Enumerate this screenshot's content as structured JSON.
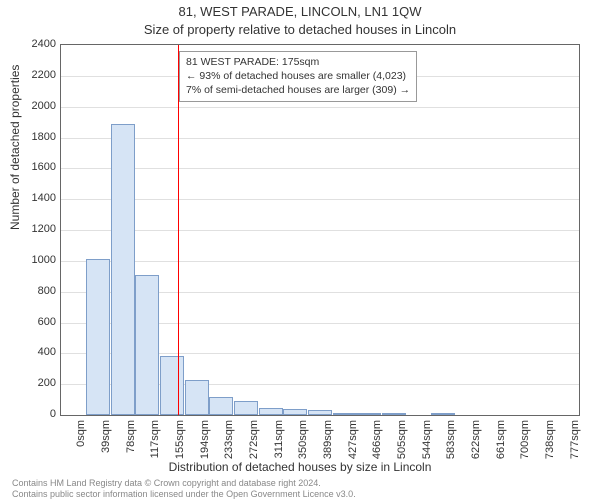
{
  "title_main": "81, WEST PARADE, LINCOLN, LN1 1QW",
  "title_sub": "Size of property relative to detached houses in Lincoln",
  "chart": {
    "type": "histogram",
    "y_axis_label": "Number of detached properties",
    "x_axis_label": "Distribution of detached houses by size in Lincoln",
    "ylim": [
      0,
      2400
    ],
    "ytick_step": 200,
    "x_categories": [
      "0sqm",
      "39sqm",
      "78sqm",
      "117sqm",
      "155sqm",
      "194sqm",
      "233sqm",
      "272sqm",
      "311sqm",
      "350sqm",
      "389sqm",
      "427sqm",
      "466sqm",
      "505sqm",
      "544sqm",
      "583sqm",
      "622sqm",
      "661sqm",
      "700sqm",
      "738sqm",
      "777sqm"
    ],
    "values": [
      0,
      1010,
      1890,
      905,
      380,
      225,
      120,
      92,
      48,
      40,
      32,
      16,
      8,
      7,
      0,
      5,
      0,
      0,
      0,
      0,
      0
    ],
    "bar_fill": "#d6e4f5",
    "bar_stroke": "#7e9ec9",
    "background_color": "#ffffff",
    "grid_color": "#e0e0e0",
    "axis_color": "#666666",
    "reference_line": {
      "x_sqm": 175,
      "color": "#ff0000"
    },
    "annotation": {
      "line1": "81 WEST PARADE: 175sqm",
      "line2": "← 93% of detached houses are smaller (4,023)",
      "line3": "7% of semi-detached houses are larger (309) →"
    },
    "label_fontsize": 11,
    "title_fontsize": 13
  },
  "footer": {
    "line1": "Contains HM Land Registry data © Crown copyright and database right 2024.",
    "line2": "Contains public sector information licensed under the Open Government Licence v3.0."
  }
}
